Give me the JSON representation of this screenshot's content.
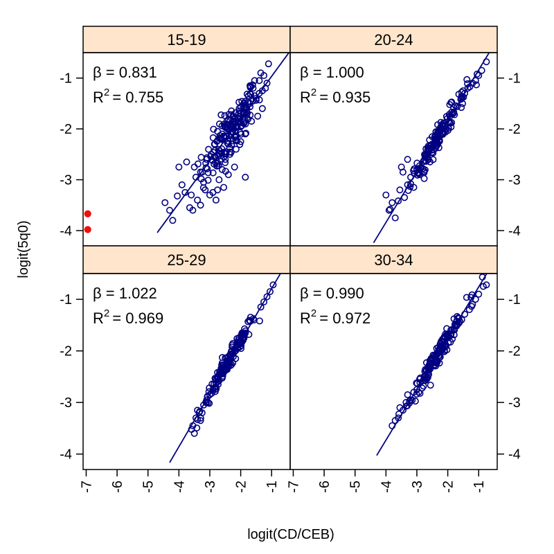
{
  "chart_data": {
    "type": "scatter",
    "layout": "2x2 trellis panels with shared axes",
    "xlabel": "logit(CD/CEB)",
    "ylabel": "logit(5q0)",
    "xlim": [
      -7.1,
      -0.4
    ],
    "ylim": [
      -4.3,
      -0.5
    ],
    "x_ticks": [
      -7,
      -6,
      -5,
      -4,
      -3,
      -2,
      -1
    ],
    "x_tick_labels": [
      "-7",
      "-6",
      "-5",
      "-4",
      "-3",
      "-2",
      "-1"
    ],
    "y_ticks": [
      -4,
      -3,
      -2,
      -1
    ],
    "y_tick_labels": [
      "-4",
      "-3",
      "-2",
      "-1"
    ],
    "grid": false,
    "colors": {
      "points": "#000080",
      "fit_line": "#000080",
      "highlight_points": "#ee1111",
      "strip_background": "#ffe5cc",
      "frame": "#000000"
    },
    "panels": [
      {
        "title": "15-19",
        "beta_label": "β = 0.831",
        "r2_base": "R",
        "r2_sup": "2",
        "r2_value": "= 0.755",
        "fit": {
          "slope": 0.831,
          "intercept": -0.135,
          "x_range": [
            -4.7,
            -0.35
          ]
        },
        "cluster": {
          "x_center": -2.35,
          "y_slope": 0.831,
          "y_intercept": -0.135,
          "noise": 0.24
        },
        "highlight_points": [
          {
            "x": -6.95,
            "y": -3.67
          },
          {
            "x": -6.95,
            "y": -3.98
          }
        ],
        "points": [
          [
            -4.05,
            -3.32
          ],
          [
            -3.9,
            -3.1
          ],
          [
            -3.8,
            -3.25
          ],
          [
            -3.6,
            -3.3
          ],
          [
            -3.55,
            -3.6
          ],
          [
            -3.4,
            -3.4
          ],
          [
            -3.3,
            -3.5
          ],
          [
            -3.15,
            -3.2
          ],
          [
            -3.0,
            -3.3
          ],
          [
            -2.9,
            -3.25
          ],
          [
            -2.8,
            -3.4
          ],
          [
            -2.7,
            -3.0
          ],
          [
            -2.6,
            -2.8
          ],
          [
            -2.5,
            -2.6
          ],
          [
            -4.0,
            -2.75
          ],
          [
            -3.75,
            -2.65
          ],
          [
            -3.5,
            -2.75
          ],
          [
            -3.3,
            -2.85
          ],
          [
            -3.1,
            -2.6
          ],
          [
            -4.2,
            -3.8
          ],
          [
            -4.3,
            -3.6
          ],
          [
            -4.45,
            -3.45
          ],
          [
            -3.65,
            -3.55
          ],
          [
            -2.4,
            -2.9
          ],
          [
            -2.2,
            -2.75
          ],
          [
            -1.85,
            -2.95
          ],
          [
            -2.55,
            -3.15
          ],
          [
            -2.75,
            -3.2
          ],
          [
            -3.2,
            -3.05
          ],
          [
            -3.45,
            -2.95
          ],
          [
            -2.6,
            -2.1
          ],
          [
            -2.5,
            -1.95
          ],
          [
            -2.4,
            -2.3
          ],
          [
            -2.3,
            -2.05
          ],
          [
            -2.2,
            -2.15
          ],
          [
            -2.1,
            -1.85
          ],
          [
            -2.0,
            -1.95
          ],
          [
            -1.9,
            -1.7
          ],
          [
            -1.8,
            -1.6
          ],
          [
            -1.7,
            -1.5
          ],
          [
            -1.6,
            -1.45
          ],
          [
            -1.5,
            -1.4
          ],
          [
            -1.4,
            -1.3
          ],
          [
            -1.3,
            -1.25
          ],
          [
            -1.2,
            -1.2
          ],
          [
            -1.15,
            -1.1
          ],
          [
            -1.25,
            -0.95
          ],
          [
            -1.1,
            -0.72
          ],
          [
            -1.4,
            -1.05
          ],
          [
            -1.6,
            -1.2
          ],
          [
            -1.75,
            -1.35
          ],
          [
            -1.9,
            -1.5
          ],
          [
            -2.05,
            -1.6
          ],
          [
            -2.25,
            -1.75
          ],
          [
            -2.45,
            -1.85
          ],
          [
            -2.65,
            -2.2
          ],
          [
            -2.75,
            -2.05
          ],
          [
            -1.3,
            -1.6
          ],
          [
            -1.45,
            -1.75
          ],
          [
            -1.65,
            -1.85
          ],
          [
            -1.85,
            -2.1
          ],
          [
            -2.0,
            -2.25
          ],
          [
            -2.15,
            -2.4
          ],
          [
            -2.35,
            -2.5
          ],
          [
            -2.55,
            -2.55
          ],
          [
            -1.55,
            -1.05
          ],
          [
            -1.35,
            -0.9
          ],
          [
            -1.7,
            -1.15
          ],
          [
            -2.85,
            -2.3
          ],
          [
            -2.95,
            -2.5
          ]
        ]
      },
      {
        "title": "20-24",
        "beta_label": "β = 1.000",
        "r2_base": "R",
        "r2_sup": "2",
        "r2_value": "= 0.935",
        "fit": {
          "slope": 1.0,
          "intercept": 0.16,
          "x_range": [
            -4.4,
            -0.3
          ]
        },
        "cluster": {
          "x_center": -2.3,
          "y_slope": 1.0,
          "y_intercept": 0.16,
          "noise": 0.11
        },
        "highlight_points": [],
        "points": [
          [
            -4.0,
            -3.3
          ],
          [
            -3.9,
            -3.6
          ],
          [
            -3.8,
            -3.45
          ],
          [
            -3.7,
            -3.75
          ],
          [
            -3.55,
            -3.2
          ],
          [
            -3.45,
            -2.85
          ],
          [
            -3.4,
            -3.35
          ],
          [
            -3.3,
            -3.1
          ],
          [
            -3.2,
            -2.95
          ],
          [
            -3.1,
            -3.15
          ],
          [
            -3.0,
            -2.8
          ],
          [
            -2.9,
            -2.9
          ],
          [
            -2.8,
            -2.65
          ],
          [
            -3.5,
            -2.75
          ],
          [
            -3.3,
            -2.6
          ],
          [
            -0.75,
            -0.68
          ],
          [
            -0.9,
            -0.85
          ],
          [
            -1.0,
            -0.95
          ],
          [
            -1.1,
            -1.05
          ],
          [
            -1.2,
            -1.1
          ],
          [
            -1.35,
            -1.2
          ],
          [
            -1.45,
            -1.3
          ]
        ]
      },
      {
        "title": "25-29",
        "beta_label": "β = 1.022",
        "r2_base": "R",
        "r2_sup": "2",
        "r2_value": "= 0.969",
        "fit": {
          "slope": 1.022,
          "intercept": 0.23,
          "x_range": [
            -4.3,
            -0.4
          ]
        },
        "cluster": {
          "x_center": -2.4,
          "y_slope": 1.022,
          "y_intercept": 0.23,
          "noise": 0.09
        },
        "highlight_points": [],
        "points": [
          [
            -3.5,
            -3.6
          ],
          [
            -3.55,
            -3.45
          ],
          [
            -3.45,
            -3.3
          ],
          [
            -3.4,
            -3.15
          ],
          [
            -3.3,
            -3.35
          ],
          [
            -3.25,
            -3.2
          ],
          [
            -3.2,
            -3.05
          ],
          [
            -3.1,
            -2.95
          ],
          [
            -3.0,
            -2.85
          ],
          [
            -2.9,
            -2.75
          ],
          [
            -0.95,
            -0.72
          ],
          [
            -1.05,
            -0.85
          ],
          [
            -1.15,
            -0.95
          ],
          [
            -1.25,
            -1.05
          ],
          [
            -1.35,
            -1.15
          ]
        ]
      },
      {
        "title": "30-34",
        "beta_label": "β = 0.990",
        "r2_base": "R",
        "r2_sup": "2",
        "r2_value": "= 0.972",
        "fit": {
          "slope": 0.99,
          "intercept": 0.23,
          "x_range": [
            -4.3,
            -0.3
          ]
        },
        "cluster": {
          "x_center": -2.3,
          "y_slope": 0.99,
          "y_intercept": 0.23,
          "noise": 0.09
        },
        "highlight_points": [],
        "points": [
          [
            -3.8,
            -3.45
          ],
          [
            -3.7,
            -3.35
          ],
          [
            -3.6,
            -3.3
          ],
          [
            -3.55,
            -3.1
          ],
          [
            -3.45,
            -3.15
          ],
          [
            -3.35,
            -3.0
          ],
          [
            -3.3,
            -2.85
          ],
          [
            -3.2,
            -2.95
          ],
          [
            -3.1,
            -2.8
          ],
          [
            -3.0,
            -2.75
          ],
          [
            -0.75,
            -0.72
          ],
          [
            -0.85,
            -0.75
          ],
          [
            -1.0,
            -0.9
          ],
          [
            -1.1,
            -1.0
          ],
          [
            -1.2,
            -1.1
          ],
          [
            -1.3,
            -1.2
          ]
        ]
      }
    ]
  }
}
